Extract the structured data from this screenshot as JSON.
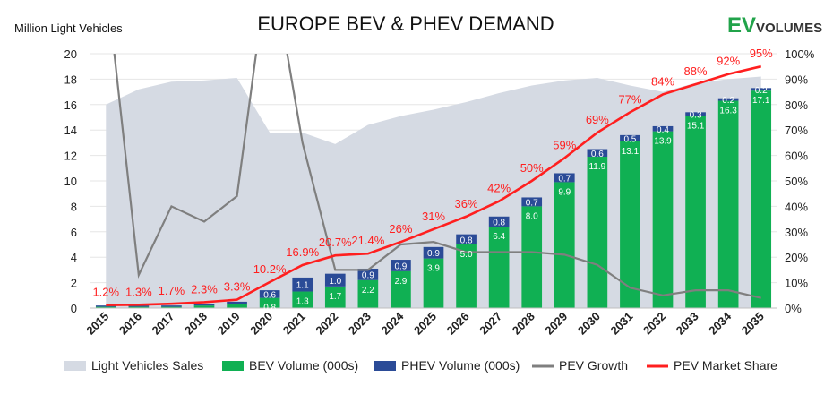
{
  "title": "EUROPE BEV & PHEV DEMAND",
  "logo": {
    "ev": "EV",
    "volumes": "VOLUMES"
  },
  "colors": {
    "area": "#d5dae3",
    "bev": "#10b053",
    "phev": "#2b4b97",
    "growth": "#7f7f7f",
    "share": "#ff1f1f"
  },
  "chart_data": {
    "type": "bar",
    "title": "EUROPE BEV & PHEV DEMAND",
    "ylabel": "Million Light Vehicles",
    "xlabel": "",
    "ylim": [
      0,
      20
    ],
    "y2lim": [
      0,
      100
    ],
    "yticks": [
      "0",
      "2",
      "4",
      "6",
      "8",
      "10",
      "12",
      "14",
      "16",
      "18",
      "20"
    ],
    "y2ticks": [
      "0%",
      "10%",
      "20%",
      "30%",
      "40%",
      "50%",
      "60%",
      "70%",
      "80%",
      "90%",
      "100%"
    ],
    "categories": [
      "2015",
      "2016",
      "2017",
      "2018",
      "2019",
      "2020",
      "2021",
      "2022",
      "2023",
      "2024",
      "2025",
      "2026",
      "2027",
      "2028",
      "2029",
      "2030",
      "2031",
      "2032",
      "2033",
      "2034",
      "2035"
    ],
    "series": [
      {
        "name": "Light Vehicles Sales",
        "type": "area",
        "values": [
          16.0,
          17.2,
          17.8,
          17.9,
          18.1,
          13.8,
          13.8,
          12.9,
          14.4,
          15.1,
          15.6,
          16.2,
          16.9,
          17.5,
          17.9,
          18.1,
          17.5,
          17.0,
          17.7,
          18.0,
          18.2
        ]
      },
      {
        "name": "BEV Volume (000s)",
        "type": "bar",
        "values": [
          0.1,
          0.1,
          0.1,
          0.2,
          0.3,
          0.8,
          1.3,
          1.7,
          2.2,
          2.9,
          3.9,
          5.0,
          6.4,
          8.0,
          9.9,
          11.9,
          13.1,
          13.9,
          15.1,
          16.3,
          17.1
        ],
        "labels": [
          "",
          "",
          "",
          "",
          "",
          "0.8",
          "1.3",
          "1.7",
          "2.2",
          "2.9",
          "3.9",
          "5.0",
          "6.4",
          "8.0",
          "9.9",
          "11.9",
          "13.1",
          "13.9",
          "15.1",
          "16.3",
          "17.1"
        ]
      },
      {
        "name": "PHEV Volume (000s)",
        "type": "bar",
        "values": [
          0.1,
          0.1,
          0.1,
          0.1,
          0.2,
          0.6,
          1.1,
          1.0,
          0.9,
          0.9,
          0.9,
          0.8,
          0.8,
          0.7,
          0.7,
          0.6,
          0.5,
          0.4,
          0.3,
          0.2,
          0.2
        ],
        "labels": [
          "",
          "",
          "",
          "",
          "",
          "0.6",
          "1.1",
          "1.0",
          "0.9",
          "0.9",
          "0.9",
          "0.8",
          "0.8",
          "0.7",
          "0.7",
          "0.6",
          "0.5",
          "0.4",
          "0.3",
          "0.2",
          "0.2"
        ]
      },
      {
        "name": "PEV Growth",
        "type": "line",
        "axis": "right",
        "values": [
          130,
          13,
          40,
          34,
          44,
          140,
          65,
          15,
          15,
          25,
          26,
          22,
          22,
          22,
          21,
          17,
          8,
          5,
          7,
          7,
          4
        ]
      },
      {
        "name": "PEV Market Share",
        "type": "line",
        "axis": "right",
        "values": [
          1.2,
          1.3,
          1.7,
          2.3,
          3.3,
          10.2,
          16.9,
          20.7,
          21.4,
          26,
          31,
          36,
          42,
          50,
          59,
          69,
          77,
          84,
          88,
          92,
          95
        ],
        "labels": [
          "1.2%",
          "1.3%",
          "1.7%",
          "2.3%",
          "3.3%",
          "10.2%",
          "16.9%",
          "20.7%",
          "21.4%",
          "26%",
          "31%",
          "36%",
          "42%",
          "50%",
          "59%",
          "69%",
          "77%",
          "84%",
          "88%",
          "92%",
          "95%"
        ]
      }
    ],
    "grid": true,
    "legend_position": "bottom"
  }
}
